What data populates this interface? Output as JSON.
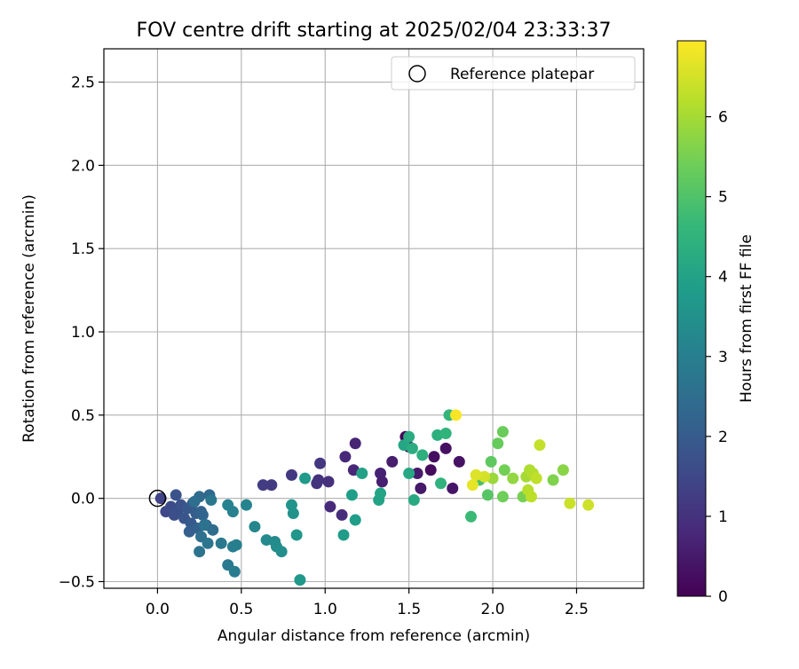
{
  "chart_data": {
    "type": "scatter",
    "title": "FOV centre drift starting at 2025/02/04 23:33:37",
    "xlabel": "Angular distance from reference (arcmin)",
    "ylabel": "Rotation from reference (arcmin)",
    "xlim": [
      -0.32,
      2.9
    ],
    "ylim": [
      -0.54,
      2.7
    ],
    "xticks": [
      0.0,
      0.5,
      1.0,
      1.5,
      2.0,
      2.5
    ],
    "xtick_labels": [
      "0.0",
      "0.5",
      "1.0",
      "1.5",
      "2.0",
      "2.5"
    ],
    "yticks": [
      -0.5,
      0.0,
      0.5,
      1.0,
      1.5,
      2.0,
      2.5
    ],
    "ytick_labels": [
      "−0.5",
      "0.0",
      "0.5",
      "1.0",
      "1.5",
      "2.0",
      "2.5"
    ],
    "grid": true,
    "legend": {
      "position": "top-right",
      "entries": [
        {
          "label": "Reference platepar",
          "marker": "open-circle",
          "color": "#000000"
        }
      ]
    },
    "reference_point": {
      "x": 0.0,
      "y": 0.0
    },
    "colorbar": {
      "label": "Hours from first FF file",
      "range": [
        0,
        6.95
      ],
      "ticks": [
        0,
        1,
        2,
        3,
        4,
        5,
        6
      ],
      "tick_labels": [
        "0",
        "1",
        "2",
        "3",
        "4",
        "5",
        "6"
      ],
      "colormap": "viridis",
      "colormap_stops": [
        "#440154",
        "#482878",
        "#3e4a89",
        "#31688e",
        "#26828e",
        "#1f9e89",
        "#35b779",
        "#6ece58",
        "#b5de2b",
        "#fde725"
      ]
    },
    "points": [
      {
        "x": 1.48,
        "y": 0.37,
        "c": 0.1
      },
      {
        "x": 1.5,
        "y": 0.31,
        "c": 0.15
      },
      {
        "x": 1.63,
        "y": 0.17,
        "c": 0.2
      },
      {
        "x": 1.65,
        "y": 0.25,
        "c": 0.25
      },
      {
        "x": 1.72,
        "y": 0.3,
        "c": 0.3
      },
      {
        "x": 1.8,
        "y": 0.22,
        "c": 0.35
      },
      {
        "x": 1.76,
        "y": 0.06,
        "c": 0.4
      },
      {
        "x": 1.57,
        "y": 0.06,
        "c": 0.45
      },
      {
        "x": 1.55,
        "y": 0.15,
        "c": 0.5
      },
      {
        "x": 1.4,
        "y": 0.22,
        "c": 0.55
      },
      {
        "x": 1.34,
        "y": 0.1,
        "c": 0.6
      },
      {
        "x": 1.33,
        "y": 0.15,
        "c": 0.65
      },
      {
        "x": 1.18,
        "y": 0.33,
        "c": 0.7
      },
      {
        "x": 1.17,
        "y": 0.17,
        "c": 0.75
      },
      {
        "x": 1.12,
        "y": 0.25,
        "c": 0.8
      },
      {
        "x": 1.03,
        "y": -0.05,
        "c": 0.85
      },
      {
        "x": 1.1,
        "y": -0.1,
        "c": 0.9
      },
      {
        "x": 1.02,
        "y": 0.1,
        "c": 0.95
      },
      {
        "x": 0.96,
        "y": 0.11,
        "c": 1.0
      },
      {
        "x": 0.95,
        "y": 0.09,
        "c": 1.05
      },
      {
        "x": 0.97,
        "y": 0.21,
        "c": 1.1
      },
      {
        "x": 0.8,
        "y": 0.14,
        "c": 1.15
      },
      {
        "x": 0.68,
        "y": 0.08,
        "c": 1.2
      },
      {
        "x": 0.63,
        "y": 0.08,
        "c": 1.25
      },
      {
        "x": 0.02,
        "y": 0.0,
        "c": 1.4
      },
      {
        "x": 0.05,
        "y": -0.08,
        "c": 1.5
      },
      {
        "x": 0.08,
        "y": -0.05,
        "c": 1.6
      },
      {
        "x": 0.1,
        "y": -0.1,
        "c": 1.65
      },
      {
        "x": 0.12,
        "y": -0.08,
        "c": 1.7
      },
      {
        "x": 0.14,
        "y": -0.04,
        "c": 1.75
      },
      {
        "x": 0.11,
        "y": 0.02,
        "c": 1.8
      },
      {
        "x": 0.16,
        "y": -0.12,
        "c": 1.85
      },
      {
        "x": 0.18,
        "y": -0.06,
        "c": 1.9
      },
      {
        "x": 0.2,
        "y": -0.15,
        "c": 1.95
      },
      {
        "x": 0.21,
        "y": -0.03,
        "c": 2.0
      },
      {
        "x": 0.23,
        "y": -0.09,
        "c": 2.05
      },
      {
        "x": 0.19,
        "y": -0.2,
        "c": 2.1
      },
      {
        "x": 0.24,
        "y": -0.18,
        "c": 2.15
      },
      {
        "x": 0.26,
        "y": -0.08,
        "c": 2.2
      },
      {
        "x": 0.27,
        "y": -0.1,
        "c": 2.25
      },
      {
        "x": 0.29,
        "y": -0.16,
        "c": 2.3
      },
      {
        "x": 0.31,
        "y": 0.02,
        "c": 2.35
      },
      {
        "x": 0.25,
        "y": 0.01,
        "c": 2.4
      },
      {
        "x": 0.33,
        "y": -0.19,
        "c": 2.45
      },
      {
        "x": 0.22,
        "y": -0.02,
        "c": 2.5
      },
      {
        "x": 0.26,
        "y": -0.23,
        "c": 2.55
      },
      {
        "x": 0.28,
        "y": -0.16,
        "c": 2.6
      },
      {
        "x": 0.25,
        "y": -0.32,
        "c": 2.65
      },
      {
        "x": 0.3,
        "y": -0.27,
        "c": 2.7
      },
      {
        "x": 0.32,
        "y": -0.01,
        "c": 2.75
      },
      {
        "x": 0.38,
        "y": -0.27,
        "c": 2.8
      },
      {
        "x": 0.42,
        "y": -0.4,
        "c": 2.85
      },
      {
        "x": 0.46,
        "y": -0.44,
        "c": 2.9
      },
      {
        "x": 0.45,
        "y": -0.29,
        "c": 2.95
      },
      {
        "x": 0.47,
        "y": -0.28,
        "c": 3.0
      },
      {
        "x": 0.45,
        "y": -0.08,
        "c": 3.05
      },
      {
        "x": 0.42,
        "y": -0.04,
        "c": 3.1
      },
      {
        "x": 0.53,
        "y": -0.04,
        "c": 3.15
      },
      {
        "x": 0.58,
        "y": -0.17,
        "c": 3.2
      },
      {
        "x": 0.65,
        "y": -0.25,
        "c": 3.3
      },
      {
        "x": 0.7,
        "y": -0.26,
        "c": 3.35
      },
      {
        "x": 0.71,
        "y": -0.29,
        "c": 3.4
      },
      {
        "x": 0.74,
        "y": -0.32,
        "c": 3.45
      },
      {
        "x": 0.81,
        "y": -0.09,
        "c": 3.55
      },
      {
        "x": 0.8,
        "y": -0.04,
        "c": 3.6
      },
      {
        "x": 0.83,
        "y": -0.22,
        "c": 3.65
      },
      {
        "x": 0.85,
        "y": -0.49,
        "c": 3.7
      },
      {
        "x": 0.88,
        "y": 0.12,
        "c": 3.75
      },
      {
        "x": 1.11,
        "y": -0.22,
        "c": 3.8
      },
      {
        "x": 1.18,
        "y": -0.13,
        "c": 3.85
      },
      {
        "x": 1.16,
        "y": 0.02,
        "c": 3.9
      },
      {
        "x": 1.22,
        "y": 0.15,
        "c": 3.95
      },
      {
        "x": 1.32,
        "y": -0.01,
        "c": 4.0
      },
      {
        "x": 1.33,
        "y": 0.03,
        "c": 4.05
      },
      {
        "x": 1.47,
        "y": 0.32,
        "c": 4.1
      },
      {
        "x": 1.5,
        "y": 0.15,
        "c": 4.15
      },
      {
        "x": 1.53,
        "y": -0.01,
        "c": 4.2
      },
      {
        "x": 1.5,
        "y": 0.37,
        "c": 4.25
      },
      {
        "x": 1.52,
        "y": 0.3,
        "c": 4.3
      },
      {
        "x": 1.58,
        "y": 0.26,
        "c": 4.35
      },
      {
        "x": 1.67,
        "y": 0.38,
        "c": 4.4
      },
      {
        "x": 1.69,
        "y": 0.09,
        "c": 4.45
      },
      {
        "x": 1.72,
        "y": 0.39,
        "c": 4.5
      },
      {
        "x": 1.74,
        "y": 0.5,
        "c": 4.55
      },
      {
        "x": 1.87,
        "y": -0.11,
        "c": 4.7
      },
      {
        "x": 1.92,
        "y": 0.11,
        "c": 4.9
      },
      {
        "x": 1.97,
        "y": 0.02,
        "c": 5.1
      },
      {
        "x": 1.99,
        "y": 0.22,
        "c": 5.2
      },
      {
        "x": 2.03,
        "y": 0.33,
        "c": 5.3
      },
      {
        "x": 2.06,
        "y": 0.4,
        "c": 5.35
      },
      {
        "x": 2.06,
        "y": 0.01,
        "c": 5.4
      },
      {
        "x": 2.07,
        "y": 0.17,
        "c": 5.45
      },
      {
        "x": 2.18,
        "y": 0.01,
        "c": 5.5
      },
      {
        "x": 2.36,
        "y": 0.11,
        "c": 5.6
      },
      {
        "x": 2.42,
        "y": 0.17,
        "c": 5.7
      },
      {
        "x": 2.12,
        "y": 0.12,
        "c": 5.8
      },
      {
        "x": 2.0,
        "y": 0.12,
        "c": 5.9
      },
      {
        "x": 2.2,
        "y": 0.13,
        "c": 6.0
      },
      {
        "x": 2.22,
        "y": 0.17,
        "c": 6.1
      },
      {
        "x": 2.24,
        "y": 0.15,
        "c": 6.15
      },
      {
        "x": 2.21,
        "y": 0.05,
        "c": 6.2
      },
      {
        "x": 2.23,
        "y": 0.01,
        "c": 6.25
      },
      {
        "x": 2.26,
        "y": 0.12,
        "c": 6.3
      },
      {
        "x": 2.28,
        "y": 0.32,
        "c": 6.35
      },
      {
        "x": 2.46,
        "y": -0.03,
        "c": 6.4
      },
      {
        "x": 2.57,
        "y": -0.04,
        "c": 6.45
      },
      {
        "x": 1.95,
        "y": 0.13,
        "c": 6.5
      },
      {
        "x": 1.9,
        "y": 0.14,
        "c": 6.6
      },
      {
        "x": 1.88,
        "y": 0.08,
        "c": 6.7
      },
      {
        "x": 1.78,
        "y": 0.5,
        "c": 6.9
      }
    ]
  }
}
